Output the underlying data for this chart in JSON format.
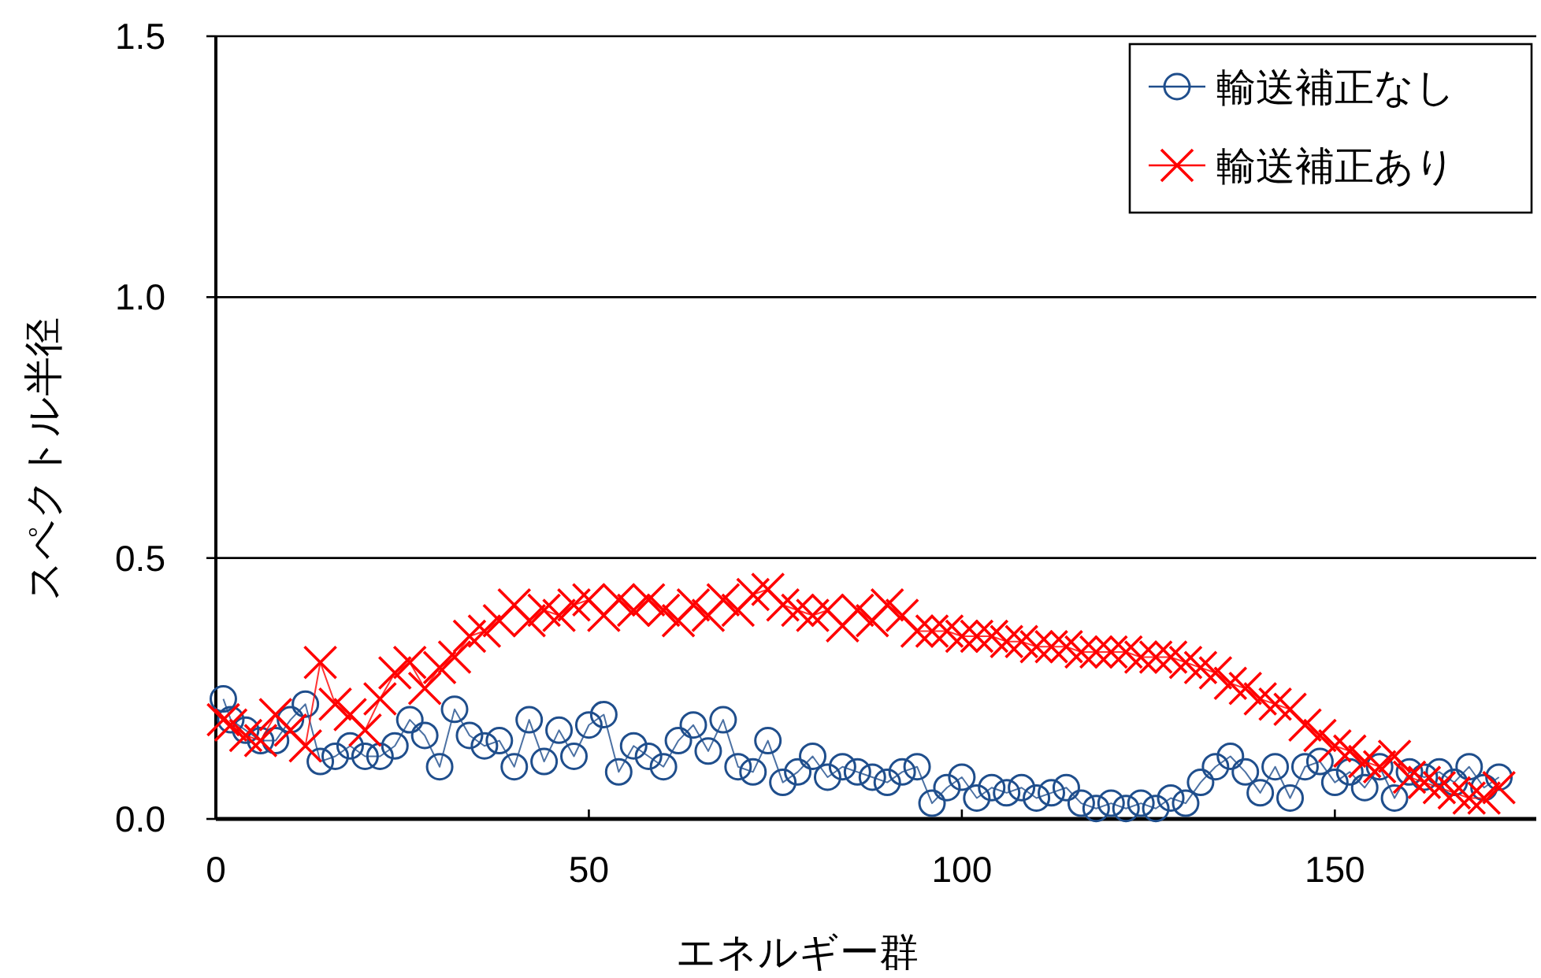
{
  "chart_data": {
    "type": "line",
    "xlabel": "エネルギー群",
    "ylabel": "スペクトル半径",
    "xlim": [
      0,
      177
    ],
    "ylim": [
      0,
      1.5
    ],
    "xticks": [
      0,
      50,
      100,
      150
    ],
    "yticks": [
      {
        "value": 0,
        "label": "0.0"
      },
      {
        "value": 0.5,
        "label": "0.5"
      },
      {
        "value": 1,
        "label": "1.0"
      },
      {
        "value": 1.5,
        "label": "1.5"
      }
    ],
    "grid": "y",
    "legend": "top right",
    "series": [
      {
        "name": "輸送補正なし",
        "color": "#1f4e8c",
        "marker": "circle",
        "x": [
          1,
          2,
          4,
          6,
          8,
          10,
          12,
          14,
          16,
          18,
          20,
          22,
          24,
          26,
          28,
          30,
          32,
          34,
          36,
          38,
          40,
          42,
          44,
          46,
          48,
          50,
          52,
          54,
          56,
          58,
          60,
          62,
          64,
          66,
          68,
          70,
          72,
          74,
          76,
          78,
          80,
          82,
          84,
          86,
          88,
          90,
          92,
          94,
          96,
          98,
          100,
          102,
          104,
          106,
          108,
          110,
          112,
          114,
          116,
          118,
          120,
          122,
          124,
          126,
          128,
          130,
          132,
          134,
          136,
          138,
          140,
          142,
          144,
          146,
          148,
          150,
          152,
          154,
          156,
          158,
          160,
          162,
          164,
          166,
          168,
          170,
          172
        ],
        "values": [
          0.23,
          0.19,
          0.17,
          0.15,
          0.15,
          0.19,
          0.22,
          0.11,
          0.12,
          0.14,
          0.12,
          0.12,
          0.14,
          0.19,
          0.16,
          0.1,
          0.21,
          0.16,
          0.14,
          0.15,
          0.1,
          0.19,
          0.11,
          0.17,
          0.12,
          0.18,
          0.2,
          0.09,
          0.14,
          0.12,
          0.1,
          0.15,
          0.18,
          0.13,
          0.19,
          0.1,
          0.09,
          0.15,
          0.07,
          0.09,
          0.12,
          0.08,
          0.1,
          0.09,
          0.08,
          0.07,
          0.09,
          0.1,
          0.03,
          0.06,
          0.08,
          0.04,
          0.06,
          0.05,
          0.06,
          0.04,
          0.05,
          0.06,
          0.03,
          0.02,
          0.03,
          0.02,
          0.03,
          0.02,
          0.04,
          0.03,
          0.07,
          0.1,
          0.12,
          0.09,
          0.05,
          0.1,
          0.04,
          0.1,
          0.11,
          0.07,
          0.09,
          0.06,
          0.1,
          0.04,
          0.09,
          0.08,
          0.09,
          0.07,
          0.1,
          0.06,
          0.08
        ]
      },
      {
        "name": "輸送補正あり",
        "color": "#ff0000",
        "marker": "cross",
        "x": [
          1,
          2,
          4,
          6,
          8,
          10,
          12,
          14,
          16,
          18,
          20,
          22,
          24,
          26,
          28,
          30,
          32,
          34,
          36,
          38,
          40,
          42,
          44,
          46,
          48,
          50,
          52,
          54,
          56,
          58,
          60,
          62,
          64,
          66,
          68,
          70,
          72,
          74,
          76,
          78,
          80,
          82,
          84,
          86,
          88,
          90,
          92,
          94,
          96,
          98,
          100,
          102,
          104,
          106,
          108,
          110,
          112,
          114,
          116,
          118,
          120,
          122,
          124,
          126,
          128,
          130,
          132,
          134,
          136,
          138,
          140,
          142,
          144,
          146,
          148,
          150,
          152,
          154,
          156,
          158,
          160,
          162,
          164,
          166,
          168,
          170,
          172
        ],
        "values": [
          0.19,
          0.18,
          0.16,
          0.15,
          0.2,
          0.17,
          0.14,
          0.3,
          0.22,
          0.2,
          0.17,
          0.23,
          0.28,
          0.3,
          0.25,
          0.29,
          0.31,
          0.35,
          0.36,
          0.38,
          0.41,
          0.38,
          0.4,
          0.39,
          0.41,
          0.42,
          0.39,
          0.42,
          0.4,
          0.42,
          0.4,
          0.38,
          0.41,
          0.39,
          0.42,
          0.4,
          0.43,
          0.44,
          0.41,
          0.4,
          0.39,
          0.4,
          0.37,
          0.4,
          0.38,
          0.41,
          0.39,
          0.36,
          0.36,
          0.36,
          0.35,
          0.35,
          0.35,
          0.34,
          0.34,
          0.33,
          0.33,
          0.33,
          0.32,
          0.32,
          0.32,
          0.32,
          0.31,
          0.31,
          0.31,
          0.3,
          0.29,
          0.28,
          0.26,
          0.25,
          0.23,
          0.22,
          0.21,
          0.18,
          0.16,
          0.14,
          0.13,
          0.11,
          0.1,
          0.12,
          0.08,
          0.07,
          0.06,
          0.05,
          0.04,
          0.04,
          0.06
        ]
      }
    ]
  }
}
